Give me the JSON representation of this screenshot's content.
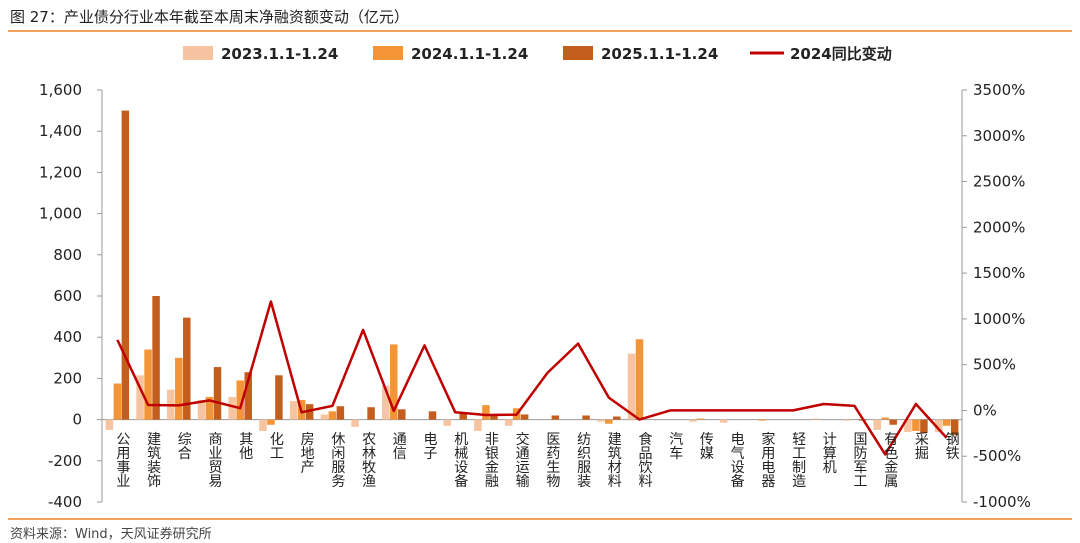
{
  "title": "图 27：产业债分行业本年截至本周末净融资额变动（亿元）",
  "source": "资料来源：Wind，天风证券研究所",
  "colors": {
    "s2023": "#f6c4a0",
    "s2024": "#f39436",
    "s2025": "#c45e1c",
    "line": "#c00000",
    "rule": "#f3a15b",
    "axis": "#999999"
  },
  "chart_data": {
    "type": "bar",
    "categories": [
      "公用事业",
      "建筑装饰",
      "综合",
      "商业贸易",
      "其他",
      "化工",
      "房地产",
      "休闲服务",
      "农林牧渔",
      "通信",
      "电子",
      "机械设备",
      "非银金融",
      "交通运输",
      "医药生物",
      "纺织服装",
      "建筑材料",
      "食品饮料",
      "汽车",
      "传媒",
      "电气设备",
      "家用电器",
      "轻工制造",
      "计算机",
      "国防军工",
      "有色金属",
      "采掘",
      "钢铁"
    ],
    "series": [
      {
        "name": "2023.1.1-1.24",
        "kind": "bar",
        "axis": "left",
        "values": [
          -50,
          215,
          145,
          95,
          110,
          -55,
          90,
          25,
          -35,
          165,
          0,
          -30,
          -55,
          -30,
          0,
          0,
          -10,
          320,
          0,
          -10,
          -15,
          0,
          0,
          5,
          -5,
          -50,
          -60,
          -60
        ]
      },
      {
        "name": "2024.1.1-1.24",
        "kind": "bar",
        "axis": "left",
        "values": [
          175,
          340,
          300,
          110,
          190,
          -25,
          95,
          40,
          0,
          365,
          0,
          0,
          70,
          55,
          0,
          0,
          -20,
          390,
          0,
          5,
          0,
          -5,
          0,
          0,
          0,
          10,
          -55,
          -30
        ]
      },
      {
        "name": "2025.1.1-1.24",
        "kind": "bar",
        "axis": "left",
        "values": [
          1500,
          600,
          495,
          255,
          230,
          215,
          75,
          65,
          60,
          50,
          40,
          35,
          25,
          25,
          20,
          20,
          15,
          0,
          0,
          0,
          0,
          0,
          0,
          0,
          -5,
          -25,
          -65,
          -75
        ]
      },
      {
        "name": "2024同比变动",
        "kind": "line",
        "axis": "right",
        "values": [
          770,
          60,
          55,
          110,
          25,
          1190,
          -20,
          50,
          880,
          -5,
          710,
          -20,
          -50,
          -45,
          410,
          730,
          140,
          -100,
          0,
          0,
          0,
          0,
          0,
          70,
          50,
          -480,
          70,
          -300
        ]
      }
    ],
    "yleft": {
      "min": -400,
      "max": 1600,
      "ticks": [
        "-400",
        "-200",
        "0",
        "200",
        "400",
        "600",
        "800",
        "1,000",
        "1,200",
        "1,400",
        "1,600"
      ]
    },
    "yright": {
      "min": -1000,
      "max": 3500,
      "ticks": [
        "-1000%",
        "-500%",
        "0%",
        "500%",
        "1000%",
        "1500%",
        "2000%",
        "2500%",
        "3000%",
        "3500%"
      ]
    },
    "grid": false,
    "legend_position": "top"
  }
}
